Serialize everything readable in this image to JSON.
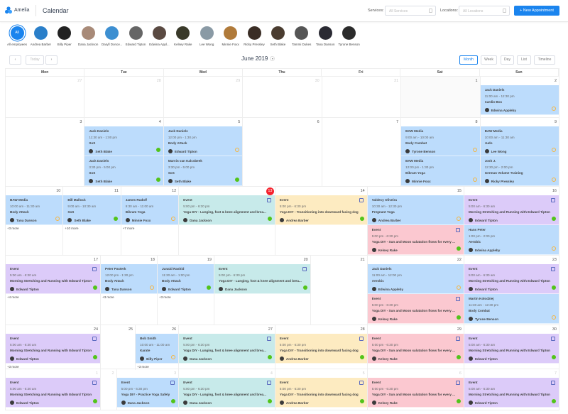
{
  "header": {
    "brand": "Amelia",
    "title": "Calendar",
    "services_label": "Services:",
    "services_placeholder": "All Services",
    "locations_label": "Locations:",
    "locations_placeholder": "All Locations",
    "new_appointment": "+ New Appointment",
    "accent": "#1a84ee"
  },
  "employees": [
    {
      "name": "All employees",
      "initials": "All"
    },
    {
      "name": "Andrea Barber"
    },
    {
      "name": "Billy Piper"
    },
    {
      "name": "Dana Jackson"
    },
    {
      "name": "Daryll Donov..."
    },
    {
      "name": "Edward Tipton"
    },
    {
      "name": "Edwina Appl..."
    },
    {
      "name": "Kelsey Rake"
    },
    {
      "name": "Lee Wong"
    },
    {
      "name": "Minnie Foxx"
    },
    {
      "name": "Ricky Pressley"
    },
    {
      "name": "Seth Blake"
    },
    {
      "name": "Tammi Dukes"
    },
    {
      "name": "Tana Danson"
    },
    {
      "name": "Tyrone Benson"
    }
  ],
  "toolbar": {
    "prev": "‹",
    "today": "Today",
    "next": "›",
    "month_label": "June 2019",
    "views": [
      "Month",
      "Week",
      "Day",
      "List",
      "Timeline"
    ],
    "active_view": "Month"
  },
  "weekdays": [
    "Mon",
    "Tue",
    "Wed",
    "Thu",
    "Fri",
    "Sat",
    "Sun"
  ],
  "colors": {
    "blue": "#bcdcfc",
    "teal": "#c7eaea",
    "yellow": "#fdebc1",
    "pink": "#fbc8d0",
    "purple": "#dccbf9"
  },
  "weeks": [
    {
      "days": [
        {
          "num": "27",
          "muted": true
        },
        {
          "num": "28",
          "muted": true
        },
        {
          "num": "29",
          "muted": true
        },
        {
          "num": "30",
          "muted": true
        },
        {
          "num": "31",
          "muted": true
        },
        {
          "num": "1"
        },
        {
          "num": "2",
          "events": [
            {
              "title": "Jack Daniels",
              "time": "11:00 am - 12:30 pm",
              "service": "Cardio Box",
              "employee": "Edwina Appleby",
              "status": "pending",
              "color": "blue"
            }
          ]
        }
      ]
    },
    {
      "days": [
        {
          "num": "3"
        },
        {
          "num": "4",
          "events": [
            {
              "title": "Jack Daniels",
              "time": "11:30 am - 1:00 pm",
              "service": "SoS",
              "employee": "Seth Blake",
              "status": "approved",
              "color": "blue"
            },
            {
              "title": "Jack Daniels",
              "time": "3:30 pm - 5:00 pm",
              "service": "SoS",
              "employee": "Seth Blake",
              "status": "approved",
              "color": "blue"
            }
          ]
        },
        {
          "num": "5",
          "events": [
            {
              "title": "Jack Daniels",
              "time": "12:00 pm - 1:30 pm",
              "service": "Body Attack",
              "employee": "Edward Tipton",
              "status": "pending",
              "color": "blue"
            },
            {
              "title": "Marvin van Kalcsbeek",
              "time": "3:30 pm - 5:00 pm",
              "service": "SoS",
              "employee": "Seth Blake",
              "status": "approved",
              "color": "blue"
            }
          ]
        },
        {
          "num": "6"
        },
        {
          "num": "7"
        },
        {
          "num": "8",
          "events": [
            {
              "title": "BAW Media",
              "time": "9:00 am - 10:00 am",
              "service": "Body Combat",
              "employee": "Tyrone Benson",
              "status": "pending",
              "color": "blue"
            },
            {
              "title": "BAW Media",
              "time": "12:00 pm - 1:30 pm",
              "service": "Bikram Yoga",
              "employee": "Minnie Foxx",
              "status": "pending",
              "color": "blue"
            }
          ]
        },
        {
          "num": "9",
          "events": [
            {
              "title": "BAW Media",
              "time": "10:00 am - 11:30 am",
              "service": "Judo",
              "employee": "Lee Wong",
              "status": "pending",
              "color": "blue"
            },
            {
              "title": "Josh J.",
              "time": "12:30 pm - 2:00 pm",
              "service": "German Volume Training",
              "employee": "Ricky Pressley",
              "status": "pending",
              "color": "blue"
            }
          ]
        }
      ]
    },
    {
      "days": [
        {
          "num": "10",
          "more": "+3 more",
          "events": [
            {
              "title": "BAW Media",
              "time": "10:00 am - 11:30 am",
              "service": "Body Attack",
              "employee": "Tana Danson",
              "status": "pending",
              "color": "blue"
            }
          ]
        },
        {
          "num": "11",
          "more": "+10 more",
          "events": [
            {
              "title": "Bill Mallock",
              "time": "9:00 am - 10:30 am",
              "service": "SoS",
              "employee": "Seth Blake",
              "status": "approved",
              "color": "blue"
            }
          ]
        },
        {
          "num": "12",
          "more": "+7 more",
          "events": [
            {
              "title": "James Rudolf",
              "time": "9:30 am - 11:00 am",
              "service": "Bikram Yoga",
              "employee": "Minnie Foxx",
              "status": "pending",
              "color": "blue"
            }
          ]
        },
        {
          "num": "13",
          "today": true,
          "events": [
            {
              "title": "Event",
              "time": "5:00 pm - 6:30 pm",
              "service": "Yoga DIY - Lunging, foot & knee alignment and brea...",
              "employee": "Dana Jackson",
              "status": "approved",
              "color": "teal",
              "is_event": true
            }
          ]
        },
        {
          "num": "14",
          "events": [
            {
              "title": "Event",
              "time": "5:00 pm - 6:30 pm",
              "service": "Yoga DIY - Transitioning into downward facing dog",
              "employee": "Andrea Barber",
              "status": "approved",
              "color": "yellow",
              "is_event": true
            }
          ]
        },
        {
          "num": "15",
          "events": [
            {
              "title": "Valdecy Oliveira",
              "time": "10:30 am - 12:30 pm",
              "service": "Pregnant Yoga",
              "employee": "Andrea Barber",
              "status": "pending",
              "color": "blue"
            },
            {
              "title": "Event",
              "time": "5:00 pm - 6:30 pm",
              "service": "Yoga DIY - Sun and Moon salutation flows for every ...",
              "employee": "Kelsey Rake",
              "status": "approved",
              "color": "pink",
              "is_event": true
            }
          ]
        },
        {
          "num": "16",
          "events": [
            {
              "title": "Event",
              "time": "5:00 am - 6:30 am",
              "service": "Morning Stretching and Running with Edward Tipton",
              "employee": "Edward Tipton",
              "status": "approved",
              "color": "purple",
              "is_event": true
            },
            {
              "title": "Hans Peter",
              "time": "1:00 pm - 2:00 pm",
              "service": "Aerobic",
              "employee": "Edwina Appleby",
              "status": "pending",
              "color": "blue"
            }
          ]
        }
      ]
    },
    {
      "days": [
        {
          "num": "17",
          "more": "+4 more",
          "events": [
            {
              "title": "Event",
              "time": "5:00 am - 6:30 am",
              "service": "Morning Stretching and Running with Edward Tipton",
              "employee": "Edward Tipton",
              "status": "approved",
              "color": "purple",
              "is_event": true
            }
          ]
        },
        {
          "num": "18",
          "more": "+3 more",
          "events": [
            {
              "title": "Peter Pasterk",
              "time": "12:00 pm - 1:30 pm",
              "service": "Body Attack",
              "employee": "Tana Danson",
              "status": "pending",
              "color": "blue"
            }
          ]
        },
        {
          "num": "19",
          "more": "+3 more",
          "events": [
            {
              "title": "Junaid Rashid",
              "time": "11:30 am - 1:00 pm",
              "service": "Body Attack",
              "employee": "Edward Tipton",
              "status": "approved",
              "color": "blue"
            }
          ]
        },
        {
          "num": "20",
          "events": [
            {
              "title": "Event",
              "time": "5:00 pm - 6:30 pm",
              "service": "Yoga DIY - Lunging, foot & knee alignment and brea...",
              "employee": "Dana Jackson",
              "status": "approved",
              "color": "teal",
              "is_event": true
            }
          ]
        },
        {
          "num": "21"
        },
        {
          "num": "22",
          "events": [
            {
              "title": "Jack Daniels",
              "time": "11:00 am - 12:00 pm",
              "service": "Aerobic",
              "employee": "Edwina Appleby",
              "status": "pending",
              "color": "blue"
            },
            {
              "title": "Event",
              "time": "5:00 pm - 6:30 pm",
              "service": "Yoga DIY - Sun and Moon salutation flows for every ...",
              "employee": "Kelsey Rake",
              "status": "approved",
              "color": "pink",
              "is_event": true
            }
          ]
        },
        {
          "num": "23",
          "events": [
            {
              "title": "Event",
              "time": "5:00 am - 6:30 am",
              "service": "Morning Stretching and Running with Edward Tipton",
              "employee": "Edward Tipton",
              "status": "approved",
              "color": "purple",
              "is_event": true
            },
            {
              "title": "Martin Kolodziej",
              "time": "11:30 am - 12:30 pm",
              "service": "Body Combat",
              "employee": "Tyrone Benson",
              "status": "pending",
              "color": "blue"
            }
          ]
        }
      ]
    },
    {
      "days": [
        {
          "num": "24",
          "more": "+3 more",
          "events": [
            {
              "title": "Event",
              "time": "5:00 am - 6:30 am",
              "service": "Morning Stretching and Running with Edward Tipton",
              "employee": "Edward Tipton",
              "status": "approved",
              "color": "purple",
              "is_event": true
            }
          ]
        },
        {
          "num": "25"
        },
        {
          "num": "26",
          "more": "+3 more",
          "events": [
            {
              "title": "Bob Smith",
              "time": "10:00 am - 11:00 am",
              "service": "Karate",
              "employee": "Billy Piper",
              "status": "pending",
              "color": "blue"
            }
          ]
        },
        {
          "num": "27",
          "events": [
            {
              "title": "Event",
              "time": "5:00 pm - 6:30 pm",
              "service": "Yoga DIY - Lunging, foot & knee alignment and brea...",
              "employee": "Dana Jackson",
              "status": "approved",
              "color": "teal",
              "is_event": true
            }
          ]
        },
        {
          "num": "28",
          "events": [
            {
              "title": "Event",
              "time": "5:00 pm - 6:30 pm",
              "service": "Yoga DIY - Transitioning into downward facing dog",
              "employee": "Andrea Barber",
              "status": "approved",
              "color": "yellow",
              "is_event": true
            }
          ]
        },
        {
          "num": "29",
          "events": [
            {
              "title": "Event",
              "time": "5:00 pm - 6:30 pm",
              "service": "Yoga DIY - Sun and Moon salutation flows for every ...",
              "employee": "Kelsey Rake",
              "status": "approved",
              "color": "pink",
              "is_event": true
            }
          ]
        },
        {
          "num": "30",
          "events": [
            {
              "title": "Event",
              "time": "5:00 am - 6:30 am",
              "service": "Morning Stretching and Running with Edward Tipton",
              "employee": "Edward Tipton",
              "status": "approved",
              "color": "purple",
              "is_event": true
            }
          ]
        }
      ]
    },
    {
      "days": [
        {
          "num": "1",
          "muted": true,
          "events": [
            {
              "title": "Event",
              "time": "5:00 am - 6:30 am",
              "service": "Morning Stretching and Running with Edward Tipton",
              "employee": "Edward Tipton",
              "status": "approved",
              "color": "purple",
              "is_event": true
            }
          ]
        },
        {
          "num": "2",
          "muted": true
        },
        {
          "num": "3",
          "muted": true,
          "events": [
            {
              "title": "Event",
              "time": "5:00 pm - 6:30 pm",
              "service": "Yoga DIY - Practice Yoga Safely",
              "employee": "Dana Jackson",
              "status": "approved",
              "color": "blue",
              "is_event": true
            }
          ]
        },
        {
          "num": "4",
          "muted": true,
          "events": [
            {
              "title": "Event",
              "time": "5:00 pm - 6:30 pm",
              "service": "Yoga DIY - Lunging, foot & knee alignment and brea...",
              "employee": "Dana Jackson",
              "status": "approved",
              "color": "teal",
              "is_event": true
            }
          ]
        },
        {
          "num": "5",
          "muted": true,
          "events": [
            {
              "title": "Event",
              "time": "5:00 pm - 6:30 pm",
              "service": "Yoga DIY - Transitioning into downward facing dog",
              "employee": "Andrea Barber",
              "status": "approved",
              "color": "yellow",
              "is_event": true
            }
          ]
        },
        {
          "num": "6",
          "muted": true,
          "events": [
            {
              "title": "Event",
              "time": "5:00 pm - 6:30 pm",
              "service": "Yoga DIY - Sun and Moon salutation flows for every ...",
              "employee": "Kelsey Rake",
              "status": "approved",
              "color": "pink",
              "is_event": true
            }
          ]
        },
        {
          "num": "7",
          "muted": true,
          "events": [
            {
              "title": "Event",
              "time": "5:00 am - 6:30 am",
              "service": "Morning Stretching and Running with Edward Tipton",
              "employee": "Edward Tipton",
              "status": "approved",
              "color": "purple",
              "is_event": true
            }
          ]
        }
      ]
    }
  ]
}
